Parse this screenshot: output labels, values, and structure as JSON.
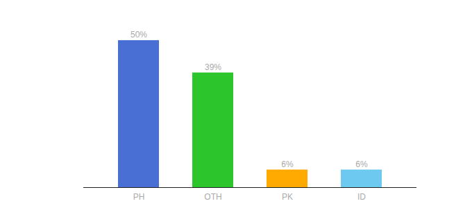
{
  "chart_data": {
    "type": "bar",
    "categories": [
      "PH",
      "OTH",
      "PK",
      "ID"
    ],
    "values": [
      50,
      39,
      6,
      6
    ],
    "value_labels": [
      "50%",
      "39%",
      "6%",
      "6%"
    ],
    "colors": [
      "#4a6fd4",
      "#2cc52c",
      "#ffaa00",
      "#6ec9f0"
    ],
    "ylim": [
      0,
      58
    ],
    "grid": false,
    "data_labels": true,
    "tick_labels": "x"
  }
}
